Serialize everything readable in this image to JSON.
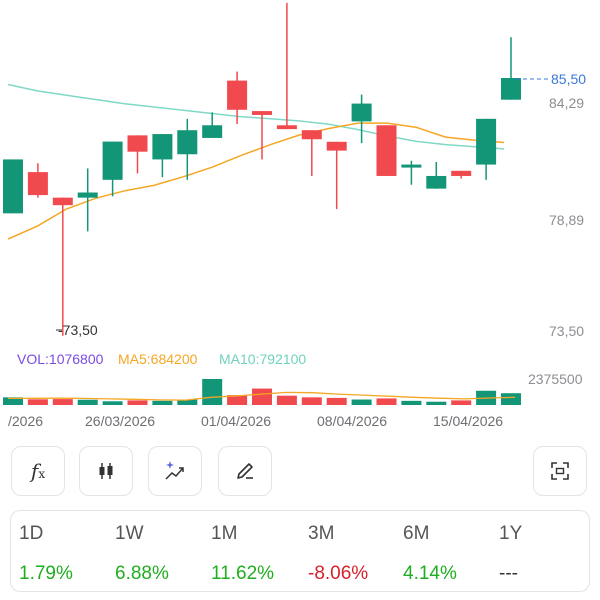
{
  "chart_data": {
    "type": "candlestick",
    "y_ticks": [
      "84,29",
      "78,89",
      "73,50"
    ],
    "current_price_label": "85,50",
    "low_marker_label": "-73,50",
    "volume_max_label": "2375500",
    "dates": [
      "/2026",
      "26/03/2026",
      "01/04/2026",
      "08/04/2026",
      "15/04/2026"
    ],
    "candles": [
      {
        "o": 79.2,
        "c": 81.71,
        "h": 81.71,
        "l": 79.2,
        "dir": "up"
      },
      {
        "o": 81.12,
        "c": 80.05,
        "h": 81.53,
        "l": 79.93,
        "dir": "down"
      },
      {
        "o": 79.93,
        "c": 79.58,
        "h": 79.93,
        "l": 73.5,
        "dir": "down"
      },
      {
        "o": 79.93,
        "c": 80.17,
        "h": 81.29,
        "l": 78.36,
        "dir": "up"
      },
      {
        "o": 80.76,
        "c": 82.54,
        "h": 82.54,
        "l": 79.99,
        "dir": "up"
      },
      {
        "o": 82.83,
        "c": 82.07,
        "h": 82.83,
        "l": 81.06,
        "dir": "down"
      },
      {
        "o": 81.71,
        "c": 82.89,
        "h": 82.89,
        "l": 80.88,
        "dir": "up"
      },
      {
        "o": 81.95,
        "c": 83.07,
        "h": 83.6,
        "l": 80.76,
        "dir": "up"
      },
      {
        "o": 82.71,
        "c": 83.3,
        "h": 83.9,
        "l": 82.71,
        "dir": "up"
      },
      {
        "o": 85.38,
        "c": 84.02,
        "h": 85.8,
        "l": 83.36,
        "dir": "down"
      },
      {
        "o": 83.96,
        "c": 83.78,
        "h": 83.96,
        "l": 81.71,
        "dir": "down"
      },
      {
        "o": 83.3,
        "c": 83.12,
        "h": 89.0,
        "l": 83.12,
        "dir": "down"
      },
      {
        "o": 83.07,
        "c": 82.65,
        "h": 83.07,
        "l": 80.94,
        "dir": "down"
      },
      {
        "o": 82.53,
        "c": 82.12,
        "h": 82.53,
        "l": 79.4,
        "dir": "down"
      },
      {
        "o": 83.48,
        "c": 84.31,
        "h": 84.73,
        "l": 82.47,
        "dir": "up"
      },
      {
        "o": 83.3,
        "c": 80.94,
        "h": 83.3,
        "l": 80.94,
        "dir": "down"
      },
      {
        "o": 81.35,
        "c": 81.47,
        "h": 81.65,
        "l": 80.53,
        "dir": "up"
      },
      {
        "o": 80.35,
        "c": 80.94,
        "h": 81.59,
        "l": 80.35,
        "dir": "up"
      },
      {
        "o": 81.18,
        "c": 80.94,
        "h": 81.18,
        "l": 80.82,
        "dir": "down"
      },
      {
        "o": 81.47,
        "c": 83.6,
        "h": 83.6,
        "l": 80.76,
        "dir": "up"
      },
      {
        "o": 84.49,
        "c": 85.5,
        "h": 87.4,
        "l": 84.49,
        "dir": "up"
      }
    ],
    "ma_orange": [
      78.0,
      78.6,
      79.4,
      79.9,
      80.25,
      80.5,
      80.9,
      81.35,
      81.9,
      82.4,
      82.85,
      83.15,
      83.4,
      83.4,
      83.2,
      82.75,
      82.6,
      82.5
    ],
    "ma_teal": [
      85.2,
      84.9,
      84.7,
      84.5,
      84.3,
      84.15,
      84.0,
      83.85,
      83.7,
      83.6,
      83.5,
      83.35,
      83.1,
      82.8,
      82.55,
      82.4,
      82.3,
      82.2
    ],
    "volumes": [
      700000,
      520000,
      540000,
      480000,
      340000,
      420000,
      380000,
      500000,
      2375500,
      900000,
      1500000,
      850000,
      700000,
      650000,
      500000,
      600000,
      380000,
      300000,
      420000,
      1300000,
      1076800
    ],
    "vol_ma": [
      600000,
      610000,
      620000,
      600000,
      560000,
      520000,
      470000,
      450000,
      700000,
      820000,
      1000000,
      1150000,
      1120000,
      1000000,
      900000,
      800000,
      700000,
      620000,
      560000,
      640000,
      700000
    ]
  },
  "indicators": {
    "vol": "VOL:1076800",
    "ma5": "MA5:684200",
    "ma10": "MA10:792100"
  },
  "colors": {
    "up": "#139578",
    "down": "#f0494e",
    "ma_orange": "#f5a623",
    "ma_teal": "#7fd9c6",
    "vol_purple": "#7b4ce0",
    "price_tag": "#3a78d8"
  },
  "toolbar": {
    "buttons": [
      "fx-icon",
      "candlestick-icon",
      "ai-trend-icon",
      "pencil-icon",
      "fullscreen-icon"
    ]
  },
  "performance": [
    {
      "label": "1D",
      "value": "1.79%",
      "tone": "up"
    },
    {
      "label": "1W",
      "value": "6.88%",
      "tone": "up"
    },
    {
      "label": "1M",
      "value": "11.62%",
      "tone": "up"
    },
    {
      "label": "3M",
      "value": "-8.06%",
      "tone": "down"
    },
    {
      "label": "6M",
      "value": "4.14%",
      "tone": "up"
    },
    {
      "label": "1Y",
      "value": "---",
      "tone": "neutral"
    }
  ]
}
